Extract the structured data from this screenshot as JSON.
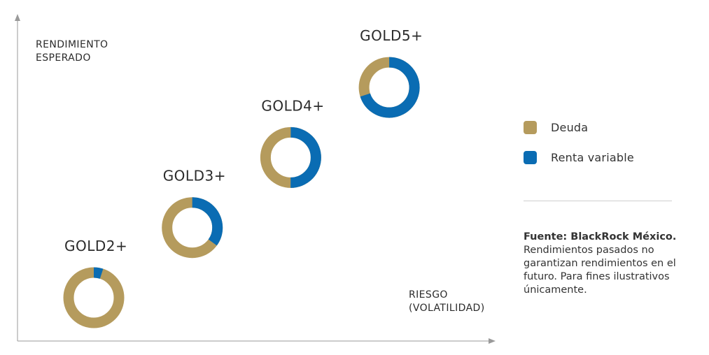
{
  "chart_data": {
    "type": "donut",
    "xlabel": "RIESGO\n(VOLATILIDAD)",
    "ylabel": "RENDIMIENTO\nESPERADO",
    "legend_position": "right",
    "colors": {
      "Deuda": "#B59B5D",
      "Renta variable": "#0A6CB3"
    },
    "categories": [
      "GOLD2+",
      "GOLD3+",
      "GOLD4+",
      "GOLD5+"
    ],
    "series": [
      {
        "name": "Deuda",
        "values": [
          95,
          65,
          50,
          30
        ]
      },
      {
        "name": "Renta variable",
        "values": [
          5,
          35,
          50,
          70
        ]
      }
    ],
    "relative_risk": [
      1,
      2,
      3,
      4
    ],
    "relative_return": [
      1,
      2,
      3,
      4
    ]
  },
  "legend": [
    {
      "label": "Deuda",
      "color": "#B59B5D"
    },
    {
      "label": "Renta variable",
      "color": "#0A6CB3"
    }
  ],
  "note": {
    "source": "Fuente: BlackRock México.",
    "body": "Rendimientos pasados no\ngarantizan rendimientos en el\nfuturo. Para fines ilustrativos\núnicamente."
  }
}
